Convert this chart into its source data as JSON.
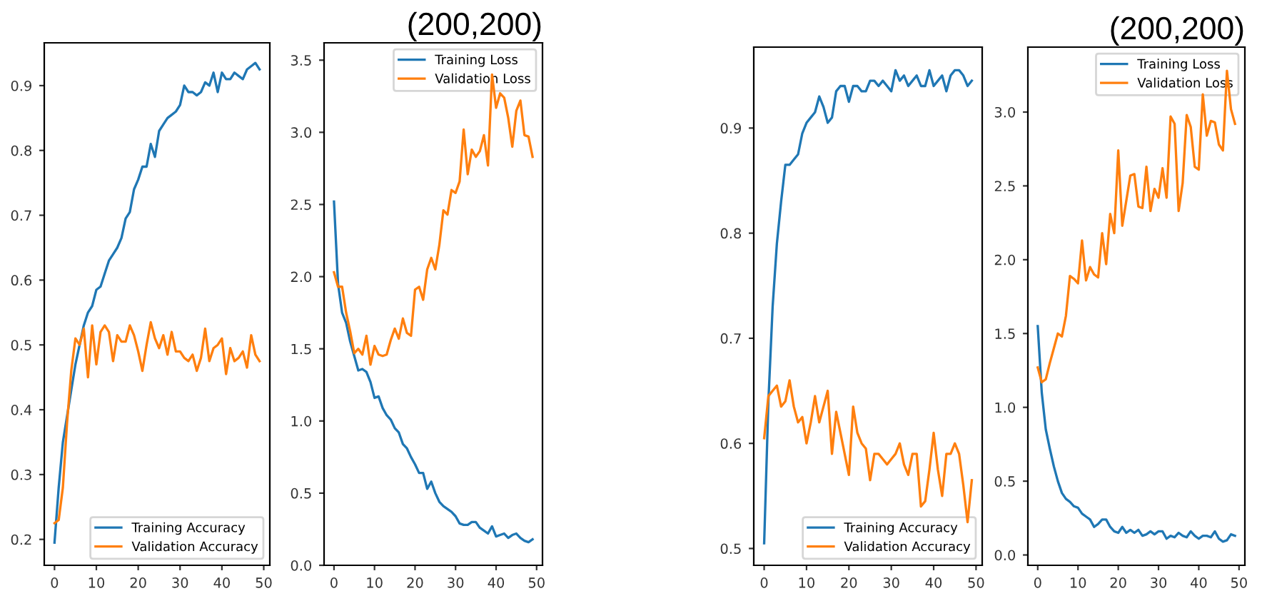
{
  "chart_data": [
    {
      "type": "line",
      "x": [
        0,
        1,
        2,
        3,
        4,
        5,
        6,
        7,
        8,
        9,
        10,
        11,
        12,
        13,
        14,
        15,
        16,
        17,
        18,
        19,
        20,
        21,
        22,
        23,
        24,
        25,
        26,
        27,
        28,
        29,
        30,
        31,
        32,
        33,
        34,
        35,
        36,
        37,
        38,
        39,
        40,
        41,
        42,
        43,
        44,
        45,
        46,
        47,
        48,
        49
      ],
      "xlim": [
        -2.45,
        51.45
      ],
      "xticks": [
        0,
        10,
        20,
        30,
        40,
        50
      ],
      "ylim": [
        0.16,
        0.966
      ],
      "yticks": [
        0.2,
        0.3,
        0.4,
        0.5,
        0.6,
        0.7,
        0.8,
        0.9
      ],
      "legend": "bottom right",
      "grid": false,
      "series": [
        {
          "name": "Training Accuracy",
          "color": "#1f77b4",
          "values": [
            0.195,
            0.28,
            0.35,
            0.39,
            0.43,
            0.47,
            0.5,
            0.53,
            0.55,
            0.56,
            0.585,
            0.59,
            0.61,
            0.63,
            0.64,
            0.65,
            0.665,
            0.695,
            0.705,
            0.74,
            0.755,
            0.775,
            0.775,
            0.81,
            0.79,
            0.83,
            0.84,
            0.85,
            0.855,
            0.86,
            0.87,
            0.9,
            0.89,
            0.89,
            0.885,
            0.89,
            0.905,
            0.9,
            0.92,
            0.89,
            0.92,
            0.91,
            0.91,
            0.92,
            0.915,
            0.91,
            0.925,
            0.93,
            0.935,
            0.925
          ]
        },
        {
          "name": "Validation Accuracy",
          "color": "#ff7f0e",
          "values": [
            0.225,
            0.23,
            0.28,
            0.38,
            0.46,
            0.51,
            0.5,
            0.525,
            0.45,
            0.53,
            0.47,
            0.52,
            0.53,
            0.52,
            0.475,
            0.515,
            0.505,
            0.505,
            0.53,
            0.515,
            0.49,
            0.46,
            0.5,
            0.535,
            0.51,
            0.495,
            0.515,
            0.485,
            0.52,
            0.49,
            0.49,
            0.48,
            0.475,
            0.485,
            0.46,
            0.48,
            0.525,
            0.475,
            0.495,
            0.5,
            0.51,
            0.455,
            0.495,
            0.475,
            0.48,
            0.49,
            0.465,
            0.515,
            0.485,
            0.475
          ]
        }
      ]
    },
    {
      "type": "line",
      "title": "(200,200)",
      "x": [
        0,
        1,
        2,
        3,
        4,
        5,
        6,
        7,
        8,
        9,
        10,
        11,
        12,
        13,
        14,
        15,
        16,
        17,
        18,
        19,
        20,
        21,
        22,
        23,
        24,
        25,
        26,
        27,
        28,
        29,
        30,
        31,
        32,
        33,
        34,
        35,
        36,
        37,
        38,
        39,
        40,
        41,
        42,
        43,
        44,
        45,
        46,
        47,
        48,
        49
      ],
      "xlim": [
        -2.45,
        51.45
      ],
      "xticks": [
        0,
        10,
        20,
        30,
        40,
        50
      ],
      "ylim": [
        0.0,
        3.62
      ],
      "yticks": [
        {
          "value": 0,
          "label": "0.0"
        },
        0.5,
        {
          "value": 1,
          "label": "1.0"
        },
        1.5,
        {
          "value": 2,
          "label": "2.0"
        },
        2.5,
        {
          "value": 3,
          "label": "3.0"
        },
        3.5
      ],
      "legend": "top right",
      "grid": false,
      "series": [
        {
          "name": "Training Loss",
          "color": "#1f77b4",
          "values": [
            2.52,
            1.95,
            1.75,
            1.68,
            1.55,
            1.45,
            1.35,
            1.36,
            1.34,
            1.27,
            1.16,
            1.17,
            1.09,
            1.04,
            1.01,
            0.95,
            0.92,
            0.84,
            0.81,
            0.75,
            0.7,
            0.64,
            0.64,
            0.53,
            0.58,
            0.5,
            0.44,
            0.41,
            0.39,
            0.37,
            0.34,
            0.29,
            0.28,
            0.28,
            0.3,
            0.3,
            0.26,
            0.24,
            0.22,
            0.27,
            0.2,
            0.21,
            0.22,
            0.19,
            0.21,
            0.22,
            0.19,
            0.17,
            0.16,
            0.18
          ]
        },
        {
          "name": "Validation Loss",
          "color": "#ff7f0e",
          "values": [
            2.03,
            1.93,
            1.93,
            1.75,
            1.62,
            1.47,
            1.5,
            1.46,
            1.59,
            1.39,
            1.52,
            1.46,
            1.45,
            1.46,
            1.56,
            1.64,
            1.57,
            1.71,
            1.61,
            1.59,
            1.91,
            1.93,
            1.84,
            2.05,
            2.13,
            2.05,
            2.22,
            2.46,
            2.43,
            2.6,
            2.58,
            2.66,
            3.02,
            2.71,
            2.88,
            2.83,
            2.87,
            2.98,
            2.77,
            3.4,
            3.17,
            3.27,
            3.24,
            3.1,
            2.9,
            3.15,
            3.22,
            2.98,
            2.97,
            2.83
          ]
        }
      ]
    },
    {
      "type": "line",
      "x": [
        0,
        1,
        2,
        3,
        4,
        5,
        6,
        7,
        8,
        9,
        10,
        11,
        12,
        13,
        14,
        15,
        16,
        17,
        18,
        19,
        20,
        21,
        22,
        23,
        24,
        25,
        26,
        27,
        28,
        29,
        30,
        31,
        32,
        33,
        34,
        35,
        36,
        37,
        38,
        39,
        40,
        41,
        42,
        43,
        44,
        45,
        46,
        47,
        48,
        49
      ],
      "xlim": [
        -2.45,
        51.45
      ],
      "xticks": [
        0,
        10,
        20,
        30,
        40,
        50
      ],
      "ylim": [
        0.484,
        0.977
      ],
      "yticks": [
        0.5,
        0.6,
        0.7,
        0.8,
        0.9
      ],
      "legend": "bottom right",
      "grid": false,
      "series": [
        {
          "name": "Training Accuracy",
          "color": "#1f77b4",
          "values": [
            0.505,
            0.64,
            0.73,
            0.79,
            0.83,
            0.865,
            0.865,
            0.87,
            0.875,
            0.895,
            0.905,
            0.91,
            0.915,
            0.93,
            0.92,
            0.905,
            0.91,
            0.935,
            0.94,
            0.94,
            0.925,
            0.94,
            0.94,
            0.935,
            0.935,
            0.945,
            0.945,
            0.94,
            0.945,
            0.94,
            0.935,
            0.955,
            0.945,
            0.95,
            0.94,
            0.945,
            0.95,
            0.94,
            0.94,
            0.955,
            0.94,
            0.945,
            0.95,
            0.935,
            0.95,
            0.955,
            0.955,
            0.95,
            0.94,
            0.945
          ]
        },
        {
          "name": "Validation Accuracy",
          "color": "#ff7f0e",
          "values": [
            0.605,
            0.645,
            0.65,
            0.655,
            0.635,
            0.64,
            0.66,
            0.635,
            0.62,
            0.625,
            0.6,
            0.62,
            0.645,
            0.62,
            0.635,
            0.65,
            0.59,
            0.63,
            0.61,
            0.59,
            0.57,
            0.635,
            0.61,
            0.6,
            0.595,
            0.565,
            0.59,
            0.59,
            0.585,
            0.58,
            0.585,
            0.59,
            0.6,
            0.58,
            0.57,
            0.59,
            0.59,
            0.54,
            0.545,
            0.575,
            0.61,
            0.575,
            0.55,
            0.59,
            0.59,
            0.6,
            0.59,
            0.56,
            0.525,
            0.565
          ]
        }
      ]
    },
    {
      "type": "line",
      "title": "(200,200)",
      "x": [
        0,
        1,
        2,
        3,
        4,
        5,
        6,
        7,
        8,
        9,
        10,
        11,
        12,
        13,
        14,
        15,
        16,
        17,
        18,
        19,
        20,
        21,
        22,
        23,
        24,
        25,
        26,
        27,
        28,
        29,
        30,
        31,
        32,
        33,
        34,
        35,
        36,
        37,
        38,
        39,
        40,
        41,
        42,
        43,
        44,
        45,
        46,
        47,
        48,
        49
      ],
      "xlim": [
        -2.45,
        51.45
      ],
      "xticks": [
        0,
        10,
        20,
        30,
        40,
        50
      ],
      "ylim": [
        -0.07,
        3.44
      ],
      "yticks": [
        {
          "value": 0,
          "label": "0.0"
        },
        0.5,
        {
          "value": 1,
          "label": "1.0"
        },
        1.5,
        {
          "value": 2,
          "label": "2.0"
        },
        2.5,
        {
          "value": 3,
          "label": "3.0"
        }
      ],
      "legend": "top right",
      "grid": false,
      "series": [
        {
          "name": "Training Loss",
          "color": "#1f77b4",
          "values": [
            1.55,
            1.1,
            0.85,
            0.72,
            0.6,
            0.5,
            0.42,
            0.38,
            0.36,
            0.33,
            0.32,
            0.28,
            0.26,
            0.24,
            0.19,
            0.21,
            0.24,
            0.24,
            0.19,
            0.16,
            0.15,
            0.19,
            0.15,
            0.17,
            0.15,
            0.17,
            0.13,
            0.14,
            0.16,
            0.14,
            0.16,
            0.16,
            0.11,
            0.13,
            0.12,
            0.15,
            0.13,
            0.12,
            0.16,
            0.13,
            0.11,
            0.13,
            0.13,
            0.12,
            0.16,
            0.11,
            0.09,
            0.1,
            0.14,
            0.13
          ]
        },
        {
          "name": "Validation Loss",
          "color": "#ff7f0e",
          "values": [
            1.27,
            1.17,
            1.19,
            1.3,
            1.4,
            1.5,
            1.48,
            1.62,
            1.89,
            1.87,
            1.84,
            2.13,
            1.86,
            1.95,
            1.9,
            1.88,
            2.18,
            1.97,
            2.31,
            2.18,
            2.74,
            2.23,
            2.4,
            2.57,
            2.58,
            2.36,
            2.35,
            2.63,
            2.33,
            2.48,
            2.42,
            2.62,
            2.42,
            2.97,
            2.92,
            2.33,
            2.52,
            2.98,
            2.9,
            2.63,
            2.61,
            3.12,
            2.84,
            2.94,
            2.93,
            2.78,
            2.74,
            3.28,
            3.02,
            2.92
          ]
        }
      ]
    }
  ]
}
